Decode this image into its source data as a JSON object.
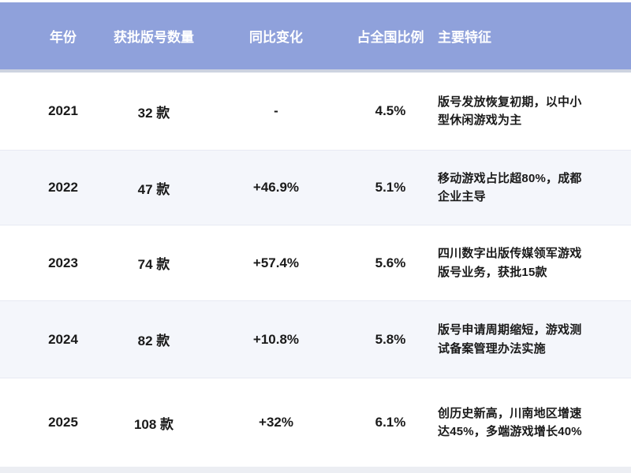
{
  "chart_data": {
    "type": "table",
    "columns": [
      "年份",
      "获批版号数量",
      "同比变化",
      "占全国比例",
      "主要特征"
    ],
    "rows": [
      {
        "year": "2021",
        "count": "32 款",
        "yoy": "-",
        "share": "4.5%",
        "feature": "版号发放恢复初期，以中小型休闲游戏为主"
      },
      {
        "year": "2022",
        "count": "47 款",
        "yoy": "+46.9%",
        "share": "5.1%",
        "feature": "移动游戏占比超80%，成都企业主导"
      },
      {
        "year": "2023",
        "count": "74 款",
        "yoy": "+57.4%",
        "share": "5.6%",
        "feature": "四川数字出版传媒领军游戏版号业务，获批15款"
      },
      {
        "year": "2024",
        "count": "82 款",
        "yoy": "+10.8%",
        "share": "5.8%",
        "feature": "版号申请周期缩短，游戏测试备案管理办法实施"
      },
      {
        "year": "2025",
        "count": "108 款",
        "yoy": "+32%",
        "share": "6.1%",
        "feature": "创历史新高，川南地区增速达45%，多端游戏增长40%"
      }
    ],
    "units": {
      "count_suffix": "款"
    }
  },
  "colors": {
    "header_bg": "#8FA1DB",
    "header_text": "#FFFFFF",
    "row_bg": "#FFFFFF",
    "row_alt_bg": "#F4F6FB",
    "body_text": "#1A1A1A",
    "header_divider": "#CDD3E0",
    "row_divider": "#E7EAF3",
    "bottom_strip": "#ECEEF3"
  }
}
